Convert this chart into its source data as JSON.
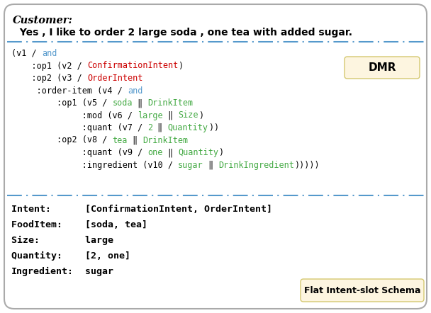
{
  "bg_color": "#ffffff",
  "outer_box_edgecolor": "#aaaaaa",
  "dash_line_color": "#5599cc",
  "dmr_box_color": "#fdf5e0",
  "dmr_box_edgecolor": "#d4c870",
  "flat_box_color": "#fdf5e0",
  "flat_box_edgecolor": "#d4c870",
  "dmr_label": "DMR",
  "flat_label": "Flat Intent-slot Schema",
  "customer_label": "Customer:",
  "customer_text": "  Yes , I like to order 2 large soda , one tea with added sugar.",
  "black": "#000000",
  "blue": "#5599cc",
  "red": "#cc0000",
  "green": "#44aa44",
  "dmr_lines": [
    [
      [
        "(v1 / ",
        "#000000"
      ],
      [
        "and",
        "#5599cc"
      ]
    ],
    [
      [
        "    :op1 (v2 / ",
        "#000000"
      ],
      [
        "ConfirmationIntent",
        "#cc0000"
      ],
      [
        ")",
        "#000000"
      ]
    ],
    [
      [
        "    :op2 (v3 / ",
        "#000000"
      ],
      [
        "OrderIntent",
        "#cc0000"
      ]
    ],
    [
      [
        "     :order-item (v4 / ",
        "#000000"
      ],
      [
        "and",
        "#5599cc"
      ]
    ],
    [
      [
        "         :op1 (v5 / ",
        "#000000"
      ],
      [
        "soda",
        "#44aa44"
      ],
      [
        " ‖ ",
        "#000000"
      ],
      [
        "DrinkItem",
        "#44aa44"
      ]
    ],
    [
      [
        "              :mod (v6 / ",
        "#000000"
      ],
      [
        "large",
        "#44aa44"
      ],
      [
        " ‖ ",
        "#000000"
      ],
      [
        "Size",
        "#44aa44"
      ],
      [
        ")",
        "#000000"
      ]
    ],
    [
      [
        "              :quant (v7 / ",
        "#000000"
      ],
      [
        "2",
        "#44aa44"
      ],
      [
        " ‖ ",
        "#000000"
      ],
      [
        "Quantity",
        "#44aa44"
      ],
      [
        ")",
        "#000000"
      ],
      [
        ")",
        "#000000"
      ]
    ],
    [
      [
        "         :op2 (v8 / ",
        "#000000"
      ],
      [
        "tea",
        "#44aa44"
      ],
      [
        " ‖ ",
        "#000000"
      ],
      [
        "DrinkItem",
        "#44aa44"
      ]
    ],
    [
      [
        "              :quant (v9 / ",
        "#000000"
      ],
      [
        "one",
        "#44aa44"
      ],
      [
        " ‖ ",
        "#000000"
      ],
      [
        "Quantity",
        "#44aa44"
      ],
      [
        ")",
        "#000000"
      ]
    ],
    [
      [
        "              :ingredient (v10 / ",
        "#000000"
      ],
      [
        "sugar",
        "#44aa44"
      ],
      [
        " ‖ ",
        "#000000"
      ],
      [
        "DrinkIngredient",
        "#44aa44"
      ],
      [
        ")))))",
        "#000000"
      ]
    ]
  ],
  "flat_lines": [
    "Intent:      [ConfirmationIntent, OrderIntent]",
    "FoodItem:    [soda, tea]",
    "Size:        large",
    "Quantity:    [2, one]",
    "Ingredient:  sugar"
  ],
  "flat_splits": [
    11,
    11,
    9,
    11,
    11
  ]
}
